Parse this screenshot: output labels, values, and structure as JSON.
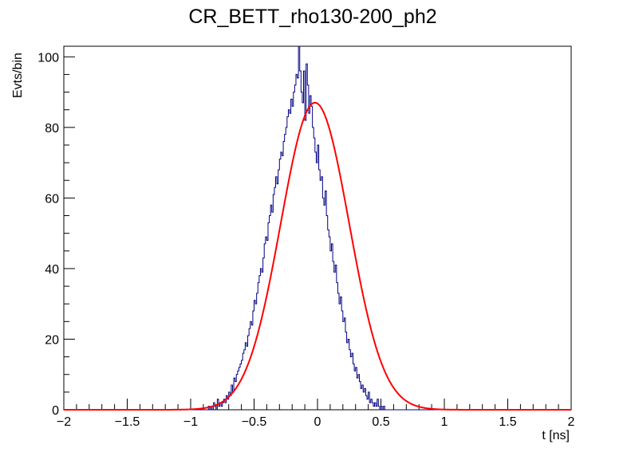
{
  "chart_data": {
    "type": "line",
    "title": "CR_BETT_rho130-200_ph2",
    "xlabel": "t [ns]",
    "ylabel": "Evts/bin",
    "xlim": [
      -2,
      2
    ],
    "ylim": [
      0,
      103
    ],
    "x_ticks": [
      -2,
      -1.5,
      -1,
      -0.5,
      0,
      0.5,
      1,
      1.5,
      2
    ],
    "x_tick_labels": [
      "−2",
      "−1.5",
      "−1",
      "−0.5",
      "0",
      "0.5",
      "1",
      "1.5",
      "2"
    ],
    "y_ticks": [
      0,
      20,
      40,
      60,
      80,
      100
    ],
    "y_tick_labels": [
      "0",
      "20",
      "40",
      "60",
      "80",
      "100"
    ],
    "grid": false,
    "legend": "none",
    "series": [
      {
        "kind": "histogram",
        "color": "#000080",
        "bin_width": 0.01,
        "x_start": -0.86,
        "values": [
          1,
          0,
          1,
          0,
          2,
          1,
          0,
          3,
          1,
          2,
          1,
          2,
          3,
          2,
          4,
          3,
          5,
          4,
          7,
          5,
          9,
          8,
          10,
          11,
          12,
          13,
          14,
          16,
          17,
          19,
          18,
          21,
          23,
          25,
          24,
          28,
          31,
          30,
          33,
          36,
          38,
          40,
          39,
          43,
          47,
          49,
          48,
          53,
          55,
          58,
          56,
          61,
          63,
          66,
          64,
          68,
          71,
          73,
          72,
          76,
          78,
          80,
          83,
          85,
          84,
          88,
          86,
          90,
          92,
          95,
          94,
          103,
          96,
          90,
          87,
          96,
          82,
          98,
          92,
          84,
          89,
          86,
          80,
          77,
          73,
          70,
          75,
          68,
          65,
          66,
          60,
          58,
          62,
          55,
          51,
          49,
          45,
          47,
          42,
          39,
          41,
          36,
          33,
          30,
          32,
          28,
          25,
          26,
          22,
          19,
          20,
          17,
          15,
          16,
          13,
          11,
          12,
          9,
          10,
          8,
          6,
          7,
          5,
          6,
          4,
          3,
          5,
          2,
          3,
          2,
          1,
          2,
          1,
          3,
          1,
          0,
          1,
          0,
          1
        ]
      },
      {
        "kind": "fit",
        "name": "",
        "color": "#ff0000",
        "function": "gaussian",
        "amplitude": 87,
        "mean": -0.02,
        "sigma": 0.27
      }
    ]
  }
}
